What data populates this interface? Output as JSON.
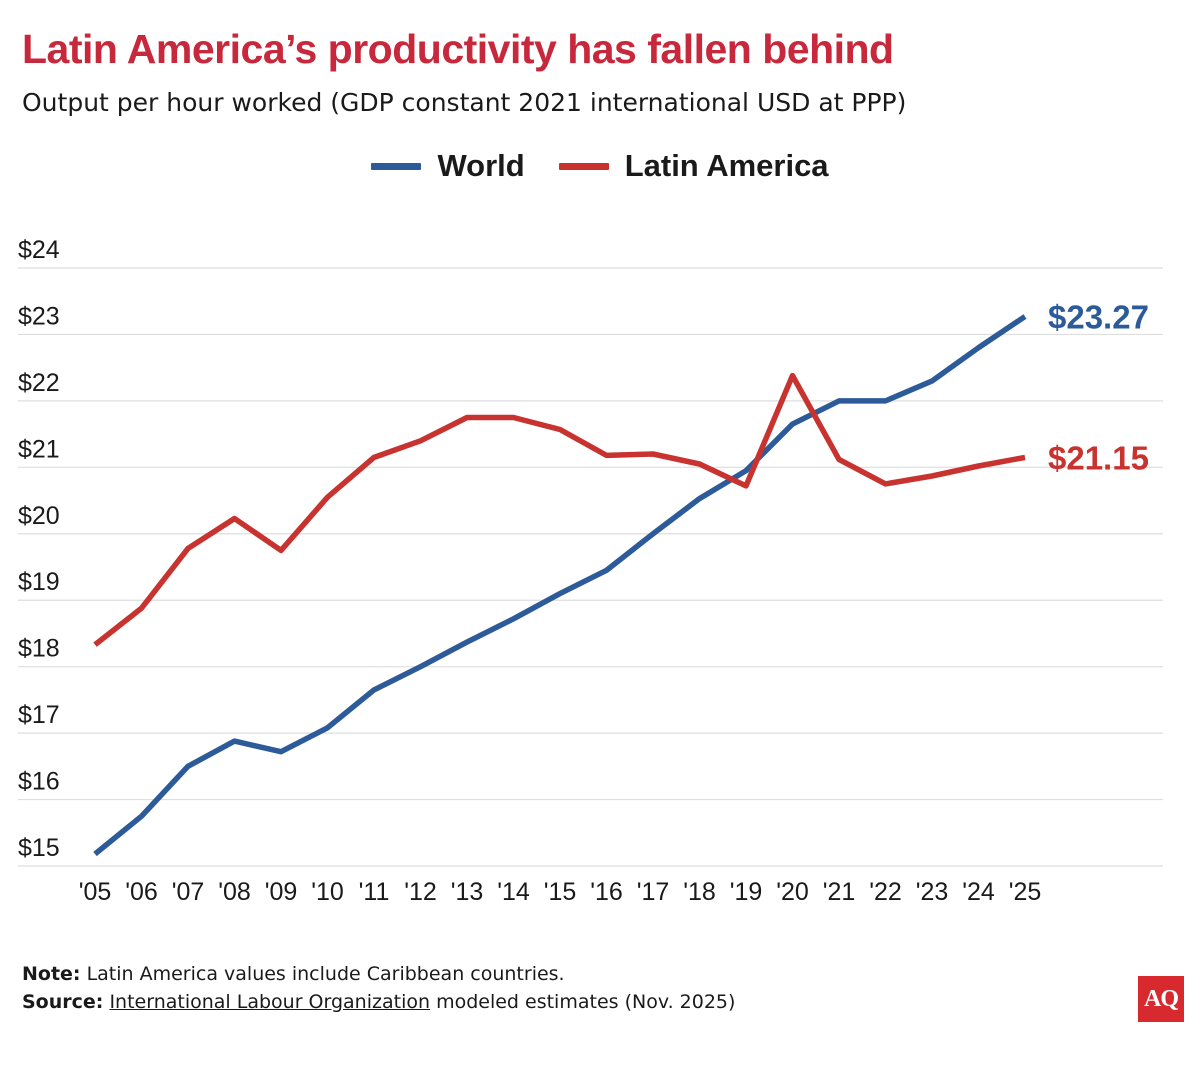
{
  "title": "Latin America’s productivity has fallen behind",
  "subtitle": "Output per hour worked (GDP constant 2021 international USD at PPP)",
  "colors": {
    "world": "#2d5b9a",
    "latin_america": "#c8322f",
    "title": "#c8283c",
    "grid": "#dedede"
  },
  "chart_data": {
    "type": "line",
    "title": "Latin America’s productivity has fallen behind",
    "subtitle": "Output per hour worked (GDP constant 2021 international USD at PPP)",
    "xlabel": "",
    "ylabel": "",
    "categories": [
      "'05",
      "'06",
      "'07",
      "'08",
      "'09",
      "'10",
      "'11",
      "'12",
      "'13",
      "'14",
      "'15",
      "'16",
      "'17",
      "'18",
      "'19",
      "'20",
      "'21",
      "'22",
      "'23",
      "'24",
      "'25"
    ],
    "y_tick_labels": [
      "$15",
      "$16",
      "$17",
      "$18",
      "$19",
      "$20",
      "$21",
      "$22",
      "$23",
      "$24"
    ],
    "ylim": [
      15,
      24
    ],
    "grid": true,
    "legend_position": "top-center",
    "series": [
      {
        "name": "World",
        "color": "#2d5b9a",
        "end_label": "$23.27",
        "values": [
          15.18,
          15.75,
          16.5,
          16.88,
          16.72,
          17.08,
          17.65,
          18.0,
          18.37,
          18.72,
          19.1,
          19.45,
          20.0,
          20.53,
          20.95,
          21.65,
          22.0,
          22.0,
          22.3,
          22.8,
          23.27
        ]
      },
      {
        "name": "Latin America",
        "color": "#c8322f",
        "end_label": "$21.15",
        "values": [
          18.33,
          18.88,
          19.78,
          20.23,
          19.75,
          20.55,
          21.15,
          21.4,
          21.75,
          21.75,
          21.57,
          21.18,
          21.2,
          21.05,
          20.72,
          22.38,
          21.12,
          20.75,
          20.87,
          21.02,
          21.15
        ]
      }
    ]
  },
  "footer": {
    "note_label": "Note:",
    "note_text": " Latin America values include Caribbean countries.",
    "source_label": "Source:",
    "source_link": "International Labour Organization",
    "source_text": " modeled estimates (Nov. 2025)"
  },
  "logo": {
    "text": "AQ"
  }
}
